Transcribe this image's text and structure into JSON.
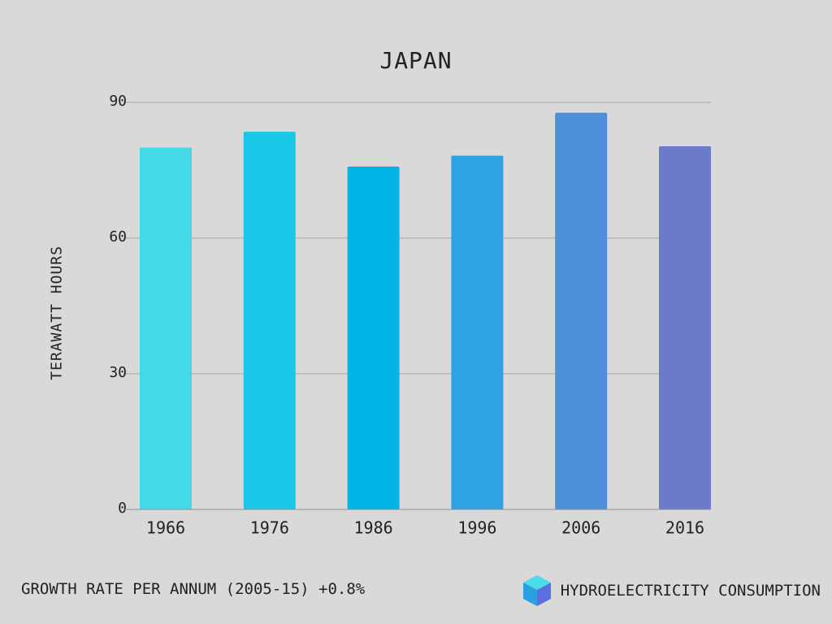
{
  "chart_data": {
    "type": "bar",
    "title": "JAPAN",
    "xlabel": "",
    "ylabel": "TERAWATT HOURS",
    "categories": [
      "1966",
      "1976",
      "1986",
      "1996",
      "2006",
      "2016"
    ],
    "values": [
      80,
      83.5,
      75.8,
      78.2,
      87.7,
      80.3
    ],
    "bar_colors": [
      "#44d9e6",
      "#19c8e9",
      "#00b4e6",
      "#2fa2e1",
      "#4e8fd9",
      "#6c7bc9"
    ],
    "ylim": [
      0,
      90
    ],
    "yticks": [
      "0",
      "30",
      "60",
      "90"
    ],
    "grid": true,
    "legend": "bottom-right"
  },
  "footer": {
    "growth_text": "GROWTH RATE PER ANNUM (2005-15) +0.8%",
    "legend_label": "HYDROELECTRICITY CONSUMPTION",
    "legend_icon": "cube-icon"
  },
  "colors": {
    "background": "#d9d9d9",
    "gridline": "#a8a8a8",
    "axis": "#8f8f8f",
    "text": "#222222"
  }
}
